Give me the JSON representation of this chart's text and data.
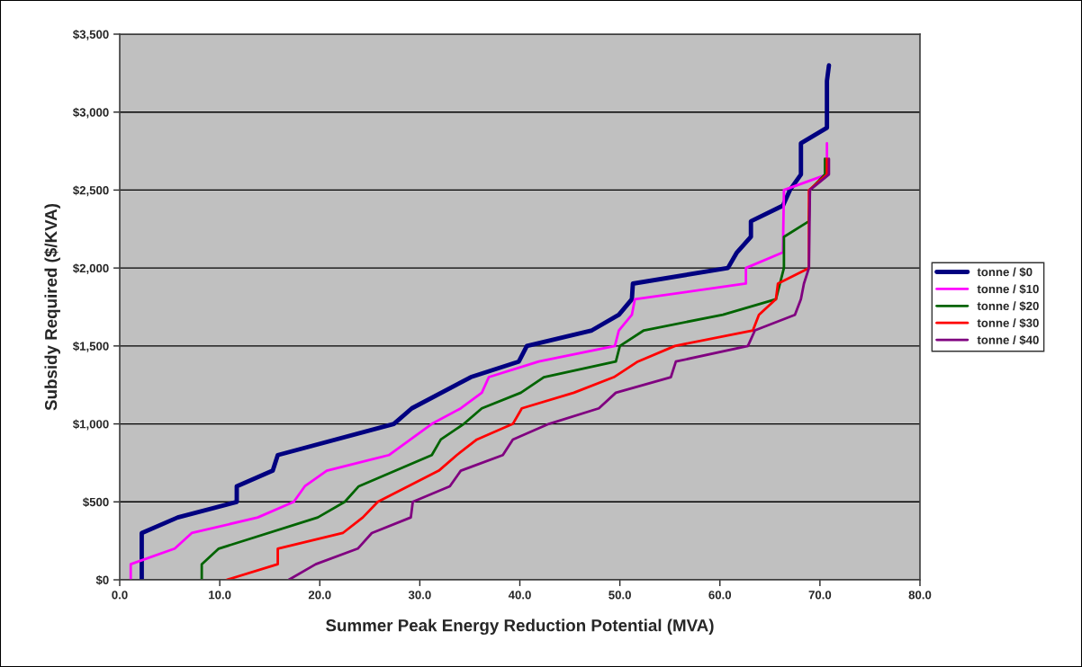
{
  "chart_data": {
    "type": "line",
    "xlabel": "Summer Peak Energy Reduction Potential (MVA)",
    "ylabel": "Subsidy Required ($/KVA)",
    "xlim": [
      0,
      80
    ],
    "xticks": [
      {
        "value": 0,
        "label": "0.0"
      },
      {
        "value": 10,
        "label": "10.0"
      },
      {
        "value": 20,
        "label": "20.0"
      },
      {
        "value": 30,
        "label": "30.0"
      },
      {
        "value": 40,
        "label": "40.0"
      },
      {
        "value": 50,
        "label": "50.0"
      },
      {
        "value": 60,
        "label": "60.0"
      },
      {
        "value": 70,
        "label": "70.0"
      },
      {
        "value": 80,
        "label": "80.0"
      }
    ],
    "ylim": [
      0,
      3500
    ],
    "yticks": [
      {
        "value": 0,
        "label": "$0"
      },
      {
        "value": 500,
        "label": "$500"
      },
      {
        "value": 1000,
        "label": "$1,000"
      },
      {
        "value": 1500,
        "label": "$1,500"
      },
      {
        "value": 2000,
        "label": "$2,000"
      },
      {
        "value": 2500,
        "label": "$2,500"
      },
      {
        "value": 3000,
        "label": "$3,000"
      },
      {
        "value": 3500,
        "label": "$3,500"
      }
    ],
    "grid": "y",
    "legend": "right",
    "marker": "none",
    "line_style": "solid",
    "series": [
      {
        "name": "tonne / $0",
        "color": "#000080",
        "x": [
          2.2,
          2.2,
          5.8,
          11.7,
          11.7,
          15.3,
          15.8,
          27.4,
          29.2,
          35.1,
          39.9,
          40.7,
          47.2,
          49.9,
          51.2,
          51.3,
          60.8,
          61.7,
          63.1,
          63.1,
          66.3,
          67.0,
          68.1,
          68.1,
          70.7,
          70.7,
          70.9
        ],
        "values": [
          0,
          300,
          400,
          500,
          600,
          700,
          800,
          1000,
          1100,
          1300,
          1400,
          1500,
          1600,
          1700,
          1800,
          1900,
          2000,
          2100,
          2200,
          2300,
          2400,
          2500,
          2600,
          2800,
          2900,
          3200,
          3300
        ]
      },
      {
        "name": "tonne / $10",
        "color": "#ff00ff",
        "x": [
          1.1,
          1.1,
          5.5,
          7.2,
          13.8,
          17.4,
          18.5,
          20.7,
          26.9,
          31.2,
          34.1,
          36.2,
          36.9,
          41.9,
          49.5,
          49.9,
          51.2,
          51.5,
          62.6,
          62.6,
          66.3,
          66.4,
          70.7,
          70.7
        ],
        "values": [
          0,
          100,
          200,
          300,
          400,
          500,
          600,
          700,
          800,
          1000,
          1100,
          1200,
          1300,
          1400,
          1500,
          1600,
          1700,
          1800,
          1900,
          2000,
          2100,
          2500,
          2600,
          2800
        ]
      },
      {
        "name": "tonne / $20",
        "color": "#006400",
        "x": [
          8.2,
          8.2,
          9.9,
          19.8,
          22.5,
          23.9,
          31.2,
          32.1,
          34.4,
          36.2,
          40.1,
          42.4,
          49.6,
          50.0,
          52.4,
          60.3,
          65.6,
          66.4,
          66.4,
          68.9,
          69.0,
          70.5,
          70.5
        ],
        "values": [
          0,
          100,
          200,
          400,
          500,
          600,
          800,
          900,
          1000,
          1100,
          1200,
          1300,
          1400,
          1500,
          1600,
          1700,
          1800,
          2000,
          2200,
          2300,
          2500,
          2600,
          2700
        ]
      },
      {
        "name": "tonne / $30",
        "color": "#ff0000",
        "x": [
          10.7,
          15.8,
          15.8,
          22.3,
          24.3,
          25.8,
          31.9,
          33.7,
          35.7,
          39.3,
          40.2,
          45.4,
          49.4,
          51.8,
          55.5,
          63.3,
          63.9,
          65.6,
          65.8,
          68.9,
          68.9,
          70.7,
          70.7
        ],
        "values": [
          0,
          100,
          200,
          300,
          400,
          500,
          700,
          800,
          900,
          1000,
          1100,
          1200,
          1300,
          1400,
          1500,
          1600,
          1700,
          1800,
          1900,
          2000,
          2500,
          2600,
          2700
        ]
      },
      {
        "name": "tonne / $40",
        "color": "#800080",
        "x": [
          16.9,
          19.6,
          23.8,
          25.2,
          29.1,
          29.3,
          33.0,
          34.1,
          38.3,
          39.3,
          42.9,
          47.9,
          49.6,
          55.1,
          55.6,
          62.8,
          63.5,
          67.5,
          68.1,
          68.4,
          68.9,
          69.0,
          70.9,
          70.9
        ],
        "values": [
          0,
          100,
          200,
          300,
          400,
          500,
          600,
          700,
          800,
          900,
          1000,
          1100,
          1200,
          1300,
          1400,
          1500,
          1600,
          1700,
          1800,
          1900,
          2000,
          2500,
          2600,
          2700
        ]
      }
    ]
  }
}
